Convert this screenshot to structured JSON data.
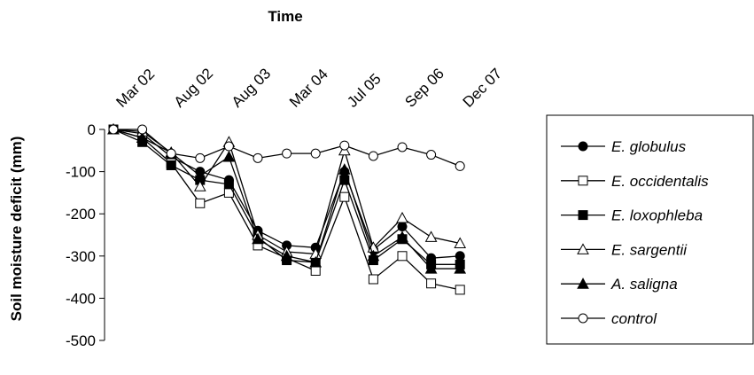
{
  "chart_data": {
    "type": "line",
    "x_label": "Time",
    "y_label": "Soil moisture deficit (mm)",
    "categories": [
      "Mar 02",
      null,
      "Aug 02",
      null,
      "Aug 03",
      null,
      "Mar 04",
      null,
      "Jul 05",
      null,
      "Sep 06",
      null,
      "Dec 07"
    ],
    "ylim": [
      -500,
      0
    ],
    "yticks": [
      0,
      -100,
      -200,
      -300,
      -400,
      -500
    ],
    "series": [
      {
        "name": "E. globulus",
        "color": "#000000",
        "marker": "circle",
        "filled": true,
        "values": [
          0,
          -10,
          -65,
          -100,
          -120,
          -240,
          -275,
          -280,
          -100,
          -285,
          -230,
          -305,
          -300
        ]
      },
      {
        "name": "E. occidentalis",
        "color": "#000000",
        "marker": "square",
        "filled": false,
        "values": [
          0,
          -20,
          -80,
          -175,
          -150,
          -275,
          -305,
          -335,
          -160,
          -355,
          -300,
          -365,
          -380
        ]
      },
      {
        "name": "E. loxophleba",
        "color": "#000000",
        "marker": "square",
        "filled": true,
        "values": [
          0,
          -30,
          -85,
          -120,
          -130,
          -255,
          -310,
          -315,
          -120,
          -310,
          -260,
          -320,
          -320
        ]
      },
      {
        "name": "E. sargentii",
        "color": "#000000",
        "marker": "triangle",
        "filled": false,
        "values": [
          0,
          -5,
          -55,
          -135,
          -30,
          -250,
          -290,
          -295,
          -50,
          -280,
          -210,
          -255,
          -270
        ]
      },
      {
        "name": "A. saligna",
        "color": "#000000",
        "marker": "triangle",
        "filled": true,
        "values": [
          0,
          -20,
          -55,
          -110,
          -65,
          -260,
          -300,
          -315,
          -95,
          -300,
          -255,
          -330,
          -330
        ]
      },
      {
        "name": "control",
        "color": "#000000",
        "marker": "circle",
        "filled": false,
        "values": [
          0,
          0,
          -57,
          -68,
          -40,
          -68,
          -57,
          -57,
          -38,
          -63,
          -42,
          -60,
          -87
        ]
      }
    ]
  }
}
